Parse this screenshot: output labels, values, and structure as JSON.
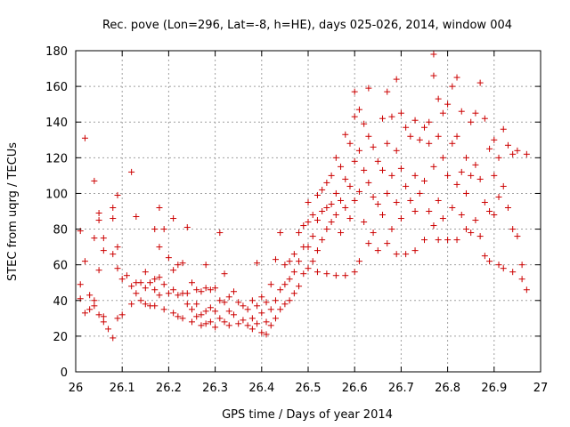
{
  "chart_data": {
    "type": "scatter",
    "title": "Rec. pove (Lon=296, Lat=-8, h=HE), days 025-026, 2014, window 004",
    "xlabel": "GPS time / Days of year 2014",
    "ylabel": "STEC from uqrg / TECUs",
    "xlim": [
      26,
      27
    ],
    "ylim": [
      0,
      180
    ],
    "xticks": [
      "26",
      "26.1",
      "26.2",
      "26.3",
      "26.4",
      "26.5",
      "26.6",
      "26.7",
      "26.8",
      "26.9",
      "27"
    ],
    "yticks": [
      "0",
      "20",
      "40",
      "60",
      "80",
      "100",
      "120",
      "140",
      "160",
      "180"
    ],
    "grid": true,
    "marker": "+",
    "color": "#cc0000",
    "points": [
      [
        26.01,
        79
      ],
      [
        26.01,
        49
      ],
      [
        26.01,
        41
      ],
      [
        26.02,
        62
      ],
      [
        26.02,
        131
      ],
      [
        26.02,
        33
      ],
      [
        26.03,
        43
      ],
      [
        26.03,
        35
      ],
      [
        26.04,
        107
      ],
      [
        26.04,
        75
      ],
      [
        26.04,
        40
      ],
      [
        26.04,
        37
      ],
      [
        26.05,
        89
      ],
      [
        26.05,
        85
      ],
      [
        26.05,
        57
      ],
      [
        26.05,
        32
      ],
      [
        26.06,
        75
      ],
      [
        26.06,
        68
      ],
      [
        26.06,
        31
      ],
      [
        26.06,
        28
      ],
      [
        26.07,
        24
      ],
      [
        26.08,
        92
      ],
      [
        26.08,
        86
      ],
      [
        26.08,
        66
      ],
      [
        26.08,
        19
      ],
      [
        26.09,
        99
      ],
      [
        26.09,
        70
      ],
      [
        26.09,
        58
      ],
      [
        26.09,
        30
      ],
      [
        26.1,
        52
      ],
      [
        26.1,
        32
      ],
      [
        26.11,
        54
      ],
      [
        26.12,
        112
      ],
      [
        26.12,
        38
      ],
      [
        26.12,
        48
      ],
      [
        26.13,
        87
      ],
      [
        26.13,
        44
      ],
      [
        26.13,
        50
      ],
      [
        26.14,
        50
      ],
      [
        26.14,
        40
      ],
      [
        26.15,
        56
      ],
      [
        26.15,
        47
      ],
      [
        26.15,
        38
      ],
      [
        26.16,
        50
      ],
      [
        26.16,
        37
      ],
      [
        26.17,
        80
      ],
      [
        26.17,
        52
      ],
      [
        26.17,
        46
      ],
      [
        26.17,
        37
      ],
      [
        26.18,
        92
      ],
      [
        26.18,
        70
      ],
      [
        26.18,
        53
      ],
      [
        26.18,
        43
      ],
      [
        26.19,
        80
      ],
      [
        26.19,
        49
      ],
      [
        26.19,
        35
      ],
      [
        26.2,
        64
      ],
      [
        26.2,
        44
      ],
      [
        26.21,
        86
      ],
      [
        26.21,
        57
      ],
      [
        26.21,
        46
      ],
      [
        26.21,
        33
      ],
      [
        26.22,
        60
      ],
      [
        26.22,
        43
      ],
      [
        26.22,
        31
      ],
      [
        26.23,
        61
      ],
      [
        26.23,
        44
      ],
      [
        26.23,
        30
      ],
      [
        26.24,
        81
      ],
      [
        26.24,
        44
      ],
      [
        26.24,
        38
      ],
      [
        26.25,
        50
      ],
      [
        26.25,
        35
      ],
      [
        26.25,
        28
      ],
      [
        26.26,
        46
      ],
      [
        26.26,
        38
      ],
      [
        26.26,
        31
      ],
      [
        26.27,
        45
      ],
      [
        26.27,
        32
      ],
      [
        26.27,
        26
      ],
      [
        26.28,
        60
      ],
      [
        26.28,
        47
      ],
      [
        26.28,
        34
      ],
      [
        26.28,
        27
      ],
      [
        26.29,
        46
      ],
      [
        26.29,
        36
      ],
      [
        26.29,
        28
      ],
      [
        26.3,
        47
      ],
      [
        26.3,
        34
      ],
      [
        26.3,
        25
      ],
      [
        26.31,
        78
      ],
      [
        26.31,
        40
      ],
      [
        26.31,
        30
      ],
      [
        26.32,
        55
      ],
      [
        26.32,
        39
      ],
      [
        26.32,
        28
      ],
      [
        26.33,
        42
      ],
      [
        26.33,
        34
      ],
      [
        26.33,
        26
      ],
      [
        26.34,
        45
      ],
      [
        26.34,
        32
      ],
      [
        26.35,
        39
      ],
      [
        26.35,
        27
      ],
      [
        26.36,
        37
      ],
      [
        26.36,
        29
      ],
      [
        26.37,
        35
      ],
      [
        26.37,
        26
      ],
      [
        26.38,
        40
      ],
      [
        26.38,
        30
      ],
      [
        26.38,
        24
      ],
      [
        26.39,
        61
      ],
      [
        26.39,
        37
      ],
      [
        26.39,
        27
      ],
      [
        26.4,
        42
      ],
      [
        26.4,
        33
      ],
      [
        26.4,
        22
      ],
      [
        26.41,
        39
      ],
      [
        26.41,
        28
      ],
      [
        26.41,
        21
      ],
      [
        26.42,
        49
      ],
      [
        26.42,
        35
      ],
      [
        26.42,
        26
      ],
      [
        26.43,
        63
      ],
      [
        26.43,
        40
      ],
      [
        26.43,
        30
      ],
      [
        26.44,
        78
      ],
      [
        26.44,
        46
      ],
      [
        26.44,
        35
      ],
      [
        26.45,
        60
      ],
      [
        26.45,
        49
      ],
      [
        26.45,
        38
      ],
      [
        26.46,
        62
      ],
      [
        26.46,
        52
      ],
      [
        26.46,
        40
      ],
      [
        26.47,
        66
      ],
      [
        26.47,
        56
      ],
      [
        26.47,
        44
      ],
      [
        26.48,
        78
      ],
      [
        26.48,
        62
      ],
      [
        26.48,
        48
      ],
      [
        26.49,
        82
      ],
      [
        26.49,
        70
      ],
      [
        26.49,
        55
      ],
      [
        26.5,
        95
      ],
      [
        26.5,
        84
      ],
      [
        26.5,
        70
      ],
      [
        26.5,
        58
      ],
      [
        26.51,
        88
      ],
      [
        26.51,
        76
      ],
      [
        26.51,
        62
      ],
      [
        26.52,
        99
      ],
      [
        26.52,
        85
      ],
      [
        26.52,
        68
      ],
      [
        26.52,
        56
      ],
      [
        26.53,
        102
      ],
      [
        26.53,
        90
      ],
      [
        26.53,
        74
      ],
      [
        26.54,
        106
      ],
      [
        26.54,
        92
      ],
      [
        26.54,
        80
      ],
      [
        26.54,
        55
      ],
      [
        26.55,
        110
      ],
      [
        26.55,
        94
      ],
      [
        26.55,
        84
      ],
      [
        26.56,
        120
      ],
      [
        26.56,
        100
      ],
      [
        26.56,
        88
      ],
      [
        26.56,
        54
      ],
      [
        26.57,
        115
      ],
      [
        26.57,
        96
      ],
      [
        26.57,
        78
      ],
      [
        26.58,
        133
      ],
      [
        26.58,
        108
      ],
      [
        26.58,
        92
      ],
      [
        26.58,
        54
      ],
      [
        26.59,
        128
      ],
      [
        26.59,
        104
      ],
      [
        26.59,
        86
      ],
      [
        26.6,
        157
      ],
      [
        26.6,
        143
      ],
      [
        26.6,
        118
      ],
      [
        26.6,
        96
      ],
      [
        26.6,
        56
      ],
      [
        26.61,
        147
      ],
      [
        26.61,
        124
      ],
      [
        26.61,
        101
      ],
      [
        26.61,
        62
      ],
      [
        26.62,
        139
      ],
      [
        26.62,
        113
      ],
      [
        26.62,
        84
      ],
      [
        26.63,
        159
      ],
      [
        26.63,
        132
      ],
      [
        26.63,
        106
      ],
      [
        26.63,
        72
      ],
      [
        26.64,
        126
      ],
      [
        26.64,
        98
      ],
      [
        26.64,
        78
      ],
      [
        26.65,
        118
      ],
      [
        26.65,
        94
      ],
      [
        26.65,
        68
      ],
      [
        26.66,
        142
      ],
      [
        26.66,
        113
      ],
      [
        26.66,
        88
      ],
      [
        26.67,
        157
      ],
      [
        26.67,
        128
      ],
      [
        26.67,
        100
      ],
      [
        26.67,
        72
      ],
      [
        26.68,
        143
      ],
      [
        26.68,
        110
      ],
      [
        26.68,
        80
      ],
      [
        26.69,
        164
      ],
      [
        26.69,
        124
      ],
      [
        26.69,
        95
      ],
      [
        26.69,
        66
      ],
      [
        26.7,
        145
      ],
      [
        26.7,
        114
      ],
      [
        26.7,
        86
      ],
      [
        26.71,
        137
      ],
      [
        26.71,
        104
      ],
      [
        26.71,
        66
      ],
      [
        26.72,
        132
      ],
      [
        26.72,
        96
      ],
      [
        26.73,
        141
      ],
      [
        26.73,
        110
      ],
      [
        26.73,
        90
      ],
      [
        26.73,
        68
      ],
      [
        26.74,
        130
      ],
      [
        26.74,
        100
      ],
      [
        26.75,
        137
      ],
      [
        26.75,
        107
      ],
      [
        26.75,
        74
      ],
      [
        26.76,
        140
      ],
      [
        26.76,
        128
      ],
      [
        26.76,
        90
      ],
      [
        26.77,
        178
      ],
      [
        26.77,
        166
      ],
      [
        26.77,
        115
      ],
      [
        26.77,
        82
      ],
      [
        26.78,
        153
      ],
      [
        26.78,
        132
      ],
      [
        26.78,
        96
      ],
      [
        26.78,
        74
      ],
      [
        26.79,
        145
      ],
      [
        26.79,
        120
      ],
      [
        26.79,
        86
      ],
      [
        26.8,
        150
      ],
      [
        26.8,
        110
      ],
      [
        26.8,
        74
      ],
      [
        26.81,
        160
      ],
      [
        26.81,
        128
      ],
      [
        26.81,
        92
      ],
      [
        26.82,
        165
      ],
      [
        26.82,
        132
      ],
      [
        26.82,
        105
      ],
      [
        26.82,
        74
      ],
      [
        26.83,
        146
      ],
      [
        26.83,
        112
      ],
      [
        26.83,
        88
      ],
      [
        26.84,
        120
      ],
      [
        26.84,
        100
      ],
      [
        26.84,
        80
      ],
      [
        26.85,
        140
      ],
      [
        26.85,
        110
      ],
      [
        26.85,
        78
      ],
      [
        26.86,
        145
      ],
      [
        26.86,
        116
      ],
      [
        26.86,
        85
      ],
      [
        26.87,
        162
      ],
      [
        26.87,
        108
      ],
      [
        26.87,
        76
      ],
      [
        26.88,
        142
      ],
      [
        26.88,
        95
      ],
      [
        26.88,
        65
      ],
      [
        26.89,
        125
      ],
      [
        26.89,
        90
      ],
      [
        26.89,
        62
      ],
      [
        26.9,
        130
      ],
      [
        26.9,
        110
      ],
      [
        26.9,
        88
      ],
      [
        26.91,
        120
      ],
      [
        26.91,
        98
      ],
      [
        26.91,
        60
      ],
      [
        26.92,
        136
      ],
      [
        26.92,
        104
      ],
      [
        26.92,
        58
      ],
      [
        26.93,
        127
      ],
      [
        26.93,
        92
      ],
      [
        26.94,
        122
      ],
      [
        26.94,
        80
      ],
      [
        26.94,
        56
      ],
      [
        26.95,
        124
      ],
      [
        26.95,
        76
      ],
      [
        26.96,
        60
      ],
      [
        26.96,
        52
      ],
      [
        26.97,
        122
      ],
      [
        26.97,
        46
      ]
    ]
  }
}
